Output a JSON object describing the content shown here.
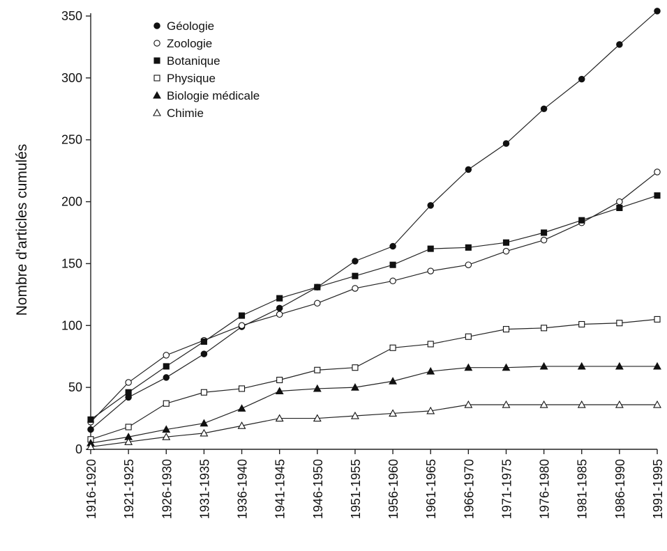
{
  "chart_data": {
    "type": "line",
    "title": "",
    "xlabel": "",
    "ylabel": "Nombre d'articles cumulés",
    "ylim": [
      0,
      350
    ],
    "yticks": [
      0,
      50,
      100,
      150,
      200,
      250,
      300,
      350
    ],
    "grid": false,
    "legend": "top-left",
    "categories": [
      "1916-1920",
      "1921-1925",
      "1926-1930",
      "1931-1935",
      "1936-1940",
      "1941-1945",
      "1946-1950",
      "1951-1955",
      "1956-1960",
      "1961-1965",
      "1966-1970",
      "1971-1975",
      "1976-1980",
      "1981-1985",
      "1986-1990",
      "1991-1995"
    ],
    "series": [
      {
        "name": "Géologie",
        "marker": "filled-circle",
        "values": [
          16,
          42,
          58,
          77,
          99,
          114,
          131,
          152,
          164,
          197,
          226,
          247,
          275,
          299,
          327,
          354
        ]
      },
      {
        "name": "Zoologie",
        "marker": "open-circle",
        "values": [
          22,
          54,
          76,
          88,
          100,
          109,
          118,
          130,
          136,
          144,
          149,
          160,
          169,
          183,
          200,
          224
        ]
      },
      {
        "name": "Botanique",
        "marker": "filled-square",
        "values": [
          24,
          46,
          67,
          87,
          108,
          122,
          131,
          140,
          149,
          162,
          163,
          167,
          175,
          185,
          195,
          205
        ]
      },
      {
        "name": "Physique",
        "marker": "open-square",
        "values": [
          8,
          18,
          37,
          46,
          49,
          56,
          64,
          66,
          82,
          85,
          91,
          97,
          98,
          101,
          102,
          105
        ]
      },
      {
        "name": "Biologie médicale",
        "marker": "filled-triangle",
        "values": [
          5,
          10,
          16,
          21,
          33,
          47,
          49,
          50,
          55,
          63,
          66,
          66,
          67,
          67,
          67,
          67
        ]
      },
      {
        "name": "Chimie",
        "marker": "open-triangle",
        "values": [
          2,
          6,
          10,
          13,
          19,
          25,
          25,
          27,
          29,
          31,
          36,
          36,
          36,
          36,
          36,
          36
        ]
      }
    ]
  }
}
